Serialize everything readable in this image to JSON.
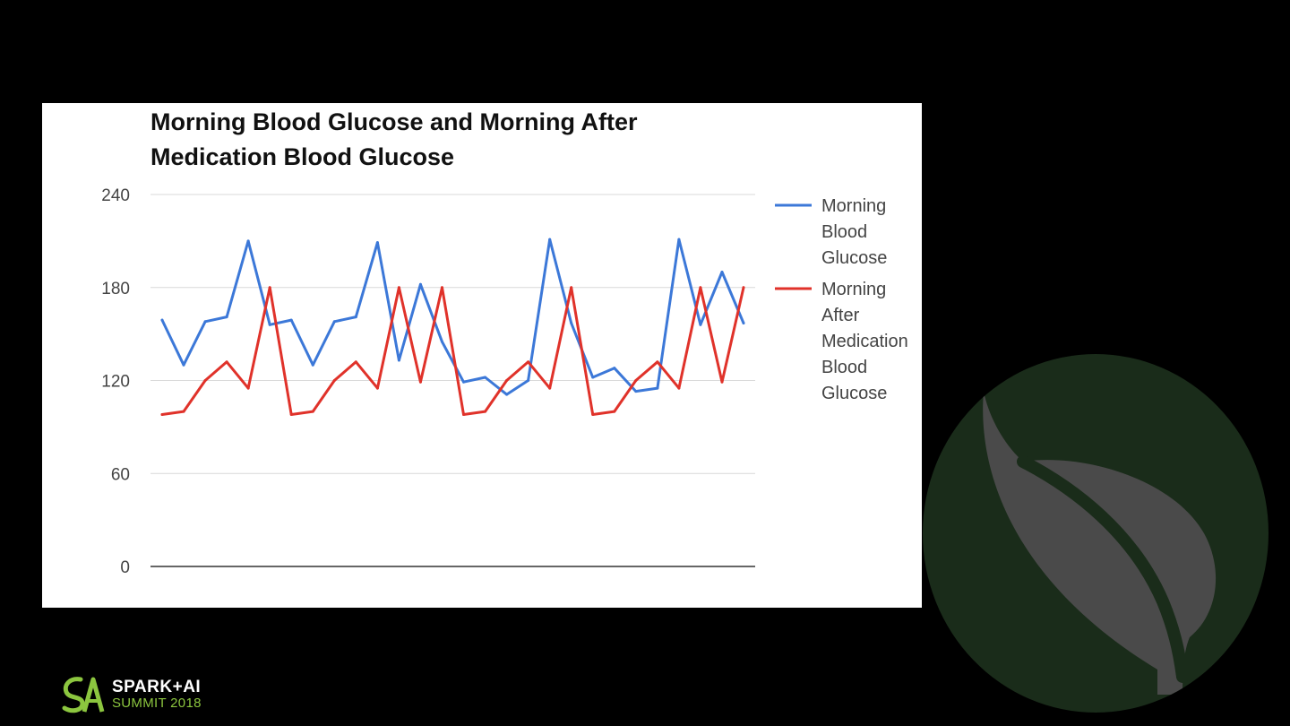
{
  "colors": {
    "background": "#000000",
    "card": "#ffffff",
    "series_blue": "#3c78d8",
    "series_red": "#e0322a",
    "gridline": "#d9d9d9",
    "axis_text": "#444444",
    "leaf_circle": "#1a2c1a",
    "leaf": "#4a4a4a",
    "logo_green": "#8cc63f"
  },
  "logo": {
    "line1": "SPARK+AI",
    "line2": "SUMMIT 2018"
  },
  "chart_data": {
    "type": "line",
    "title_lines": [
      "Morning Blood Glucose and Morning After",
      "Medication Blood Glucose"
    ],
    "xlabel": "",
    "ylabel": "",
    "ylim": [
      0,
      240
    ],
    "yticks": [
      0,
      60,
      120,
      180,
      240
    ],
    "grid": true,
    "legend_position": "right",
    "x": [
      1,
      2,
      3,
      4,
      5,
      6,
      7,
      8,
      9,
      10,
      11,
      12,
      13,
      14,
      15,
      16,
      17,
      18,
      19,
      20,
      21,
      22,
      23,
      24,
      25,
      26,
      27,
      28
    ],
    "series": [
      {
        "name": "Morning Blood Glucose",
        "legend_lines": [
          "Morning",
          "Blood",
          "Glucose"
        ],
        "color": "#3c78d8",
        "values": [
          159,
          130,
          158,
          161,
          210,
          156,
          159,
          130,
          158,
          161,
          209,
          133,
          182,
          145,
          119,
          122,
          111,
          120,
          211,
          157,
          122,
          128,
          113,
          115,
          211,
          156,
          190,
          157
        ]
      },
      {
        "name": "Morning After Medication Blood Glucose",
        "legend_lines": [
          "Morning",
          "After",
          "Medication",
          "Blood",
          "Glucose"
        ],
        "color": "#e0322a",
        "values": [
          98,
          100,
          120,
          132,
          115,
          180,
          98,
          100,
          120,
          132,
          115,
          180,
          119,
          180,
          98,
          100,
          120,
          132,
          115,
          180,
          98,
          100,
          120,
          132,
          115,
          180,
          119,
          180
        ]
      }
    ]
  }
}
